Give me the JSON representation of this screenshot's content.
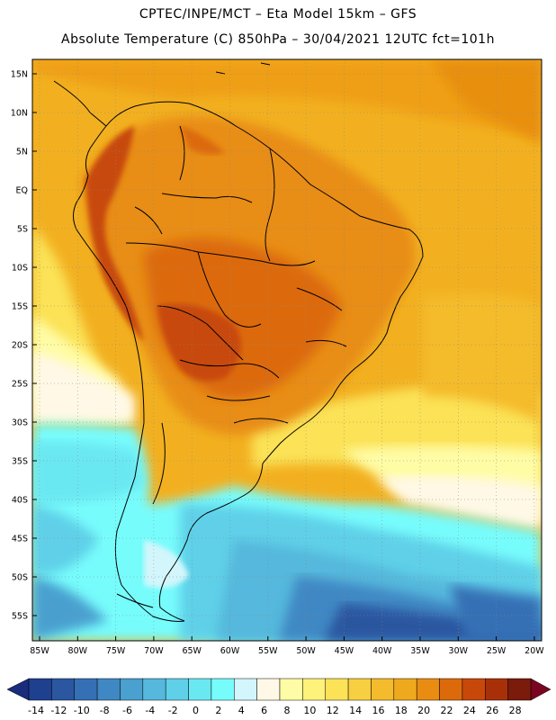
{
  "header": {
    "line1": "CPTEC/INPE/MCT –  Eta Model 15km – GFS",
    "line2": "Absolute Temperature (C) 850hPa – 30/04/2021 12UTC fct=101h"
  },
  "axes": {
    "lat_labels": [
      "15N",
      "10N",
      "5N",
      "EQ",
      "5S",
      "10S",
      "15S",
      "20S",
      "25S",
      "30S",
      "35S",
      "40S",
      "45S",
      "50S",
      "55S"
    ],
    "lon_labels": [
      "85W",
      "80W",
      "75W",
      "70W",
      "65W",
      "60W",
      "55W",
      "50W",
      "45W",
      "40W",
      "35W",
      "30W",
      "25W",
      "20W"
    ]
  },
  "colorbar": {
    "labels": [
      "-14",
      "-12",
      "-10",
      "-8",
      "-6",
      "-4",
      "-2",
      "0",
      "2",
      "4",
      "6",
      "8",
      "10",
      "12",
      "14",
      "16",
      "18",
      "20",
      "22",
      "24",
      "26",
      "28"
    ],
    "colors": [
      "#1f3f8f",
      "#2b57a0",
      "#3570b5",
      "#3f88c4",
      "#4aa0cf",
      "#55b8dc",
      "#5fd0e8",
      "#6ae8f2",
      "#77fcfc",
      "#d2f6fb",
      "#fff8e6",
      "#fffca6",
      "#fff27a",
      "#fbe257",
      "#f7cf40",
      "#f4bb2c",
      "#efa91d",
      "#e88d12",
      "#dc6a0b",
      "#c8480a",
      "#a83008",
      "#7a1b0c"
    ],
    "under_color": "#1a2d7c",
    "over_color": "#7a0520"
  },
  "map": {
    "description_colors": {
      "ocean_warm": "#f2b020",
      "land_hot": "#e0801a",
      "cold_high": "#66f0f4",
      "cold_deep": "#2b57a0"
    }
  }
}
